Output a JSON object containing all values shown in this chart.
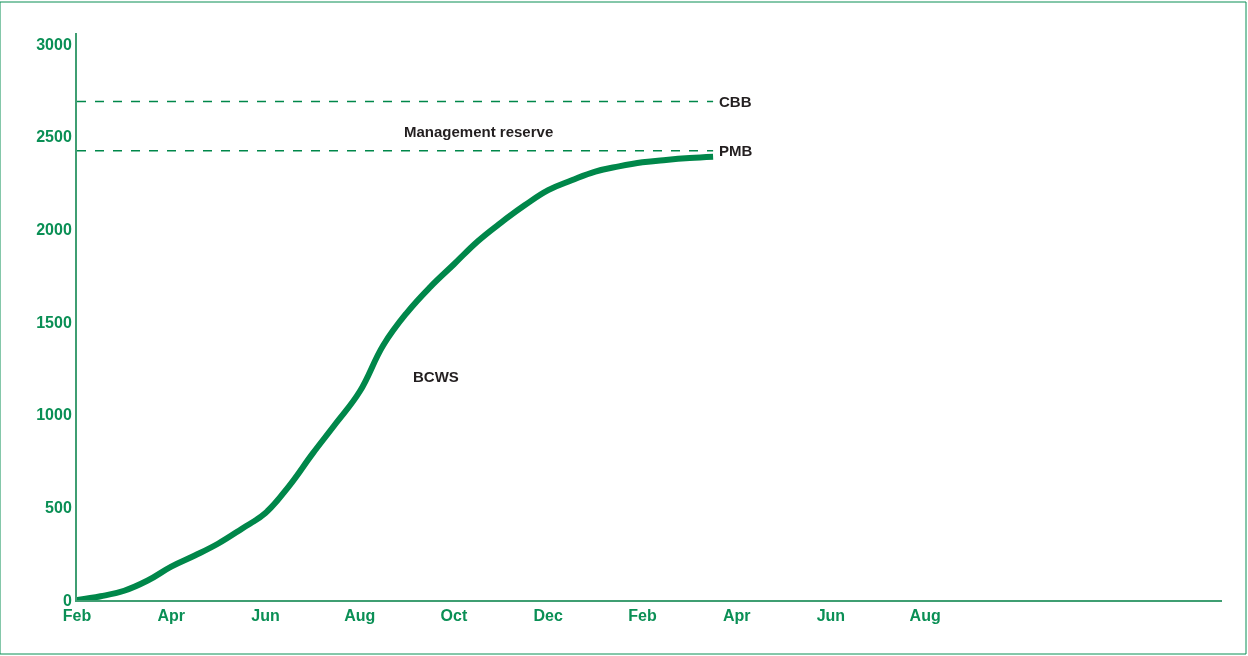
{
  "chart_data": {
    "type": "line",
    "categories": [
      "Feb",
      null,
      null,
      null,
      "Apr",
      null,
      null,
      null,
      "Jun",
      null,
      null,
      null,
      "Aug",
      null,
      null,
      null,
      "Oct",
      null,
      null,
      null,
      "Dec",
      null,
      null,
      null,
      "Feb",
      null,
      null,
      null,
      "Apr",
      null,
      null,
      null,
      "Jun",
      null,
      null,
      null,
      "Aug",
      null,
      null,
      null,
      null,
      null,
      null,
      null,
      null,
      null,
      null,
      null,
      null
    ],
    "series": [
      {
        "color": "#00874a",
        "values": [
          0,
          20,
          50,
          105,
          180,
          240,
          305,
          385,
          470,
          615,
          790,
          955,
          1125,
          1375,
          1550,
          1690,
          1812,
          1935,
          2037,
          2130,
          2212,
          2265,
          2312,
          2340,
          2362,
          2375,
          2385,
          2392,
          null,
          null,
          null,
          null,
          null,
          null,
          null,
          null,
          null,
          null,
          null,
          null,
          null,
          null,
          null,
          null,
          null,
          null,
          null,
          null,
          null
        ]
      }
    ],
    "ylim": [
      0,
      3060
    ],
    "yticks": [
      0,
      500,
      1000,
      1500,
      2000,
      2500,
      3000
    ],
    "ref_lines": [
      {
        "axis": "y",
        "value": 2690,
        "label": "CBB",
        "color": "#00874a",
        "line_style": "dashed"
      },
      {
        "axis": "y",
        "value": 2425,
        "label": "PMB",
        "color": "#00874a",
        "line_style": "dashed"
      }
    ],
    "annotations": [
      "Management reserve",
      "BCWS"
    ],
    "marker": "none",
    "line_style": "solid"
  }
}
